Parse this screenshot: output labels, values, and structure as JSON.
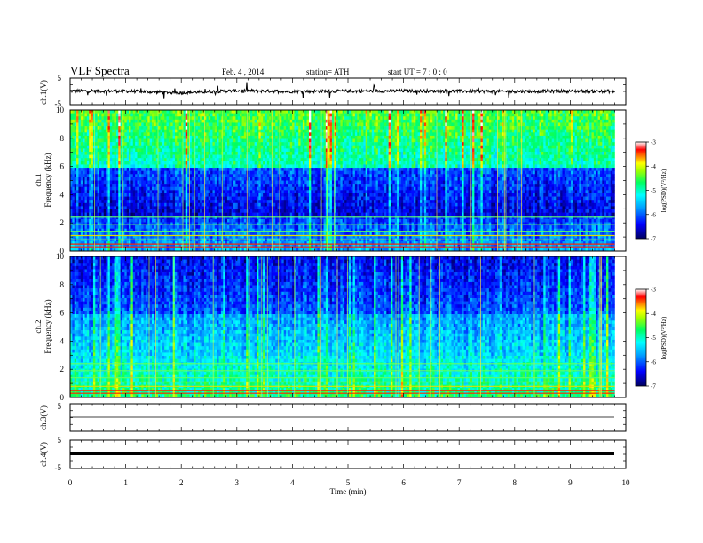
{
  "header": {
    "title": "VLF  Spectra",
    "date": "Feb. 4  , 2014",
    "station": "station= ATH",
    "start_ut": "start  UT  =   7  : 0  : 0"
  },
  "colors": {
    "spectrum_deep": "#00007a",
    "spectrum_blue": "#1e3cff",
    "spectrum_cyan": "#00d0d0",
    "spectrum_green": "#40ff40",
    "spectrum_yellow": "#e0e000",
    "spectrum_red": "#ff0000",
    "trace": "#000000"
  },
  "chart_data": [
    {
      "type": "line",
      "panel": "ch1-waveform",
      "ylabel": "ch.1(V)",
      "ylim": [
        -5,
        5
      ],
      "yticks": [
        "5",
        "-5"
      ],
      "x": [
        0,
        1,
        2,
        3,
        4,
        5,
        6,
        7,
        8,
        9,
        9.8
      ],
      "series": [
        {
          "values": [
            0.2,
            0.1,
            -0.5,
            0.3,
            0.0,
            0.1,
            0.2,
            0.1,
            0.0,
            0.1,
            0.0
          ]
        }
      ]
    },
    {
      "type": "heatmap",
      "panel": "ch1-spectrogram",
      "ylabel": "Frequency  (kHz)",
      "channel_label": "ch.1",
      "ylim": [
        0,
        10
      ],
      "yticks": [
        "10",
        "8",
        "6",
        "4",
        "2",
        "0"
      ],
      "xlim": [
        0,
        10
      ],
      "colorbar": {
        "label": "log(PSD)(V²/Hz)",
        "range": [
          -7,
          -3
        ],
        "ticks": [
          "-3",
          "-4",
          "-5",
          "-6",
          "-7"
        ]
      }
    },
    {
      "type": "heatmap",
      "panel": "ch2-spectrogram",
      "ylabel": "Frequency  (kHz)",
      "channel_label": "ch.2",
      "ylim": [
        0,
        10
      ],
      "yticks": [
        "10",
        "8",
        "6",
        "4",
        "2",
        "0"
      ],
      "xlim": [
        0,
        10
      ],
      "colorbar": {
        "label": "log(PSD)(V²/Hz)",
        "range": [
          -7,
          -3
        ],
        "ticks": [
          "-3",
          "-4",
          "-5",
          "-6",
          "-7"
        ]
      }
    },
    {
      "type": "line",
      "panel": "ch3-waveform",
      "ylabel": "ch.3(V)",
      "ylim": [
        -5,
        5
      ],
      "yticks": [
        "5"
      ],
      "x": [
        0,
        9.8
      ],
      "series": [
        {
          "values": [
            0.0,
            0.0
          ]
        }
      ]
    },
    {
      "type": "line",
      "panel": "ch4-waveform",
      "ylabel": "ch.4(V)",
      "ylim": [
        -5,
        5
      ],
      "yticks": [
        "5",
        "-5"
      ],
      "x": [
        0,
        9.8
      ],
      "series": [
        {
          "values": [
            0.0,
            0.0
          ]
        }
      ]
    }
  ],
  "xaxis": {
    "label": "Time  (min)",
    "xlim": [
      0,
      10
    ],
    "ticks": [
      "0",
      "1",
      "2",
      "3",
      "4",
      "5",
      "6",
      "7",
      "8",
      "9",
      "10"
    ]
  }
}
